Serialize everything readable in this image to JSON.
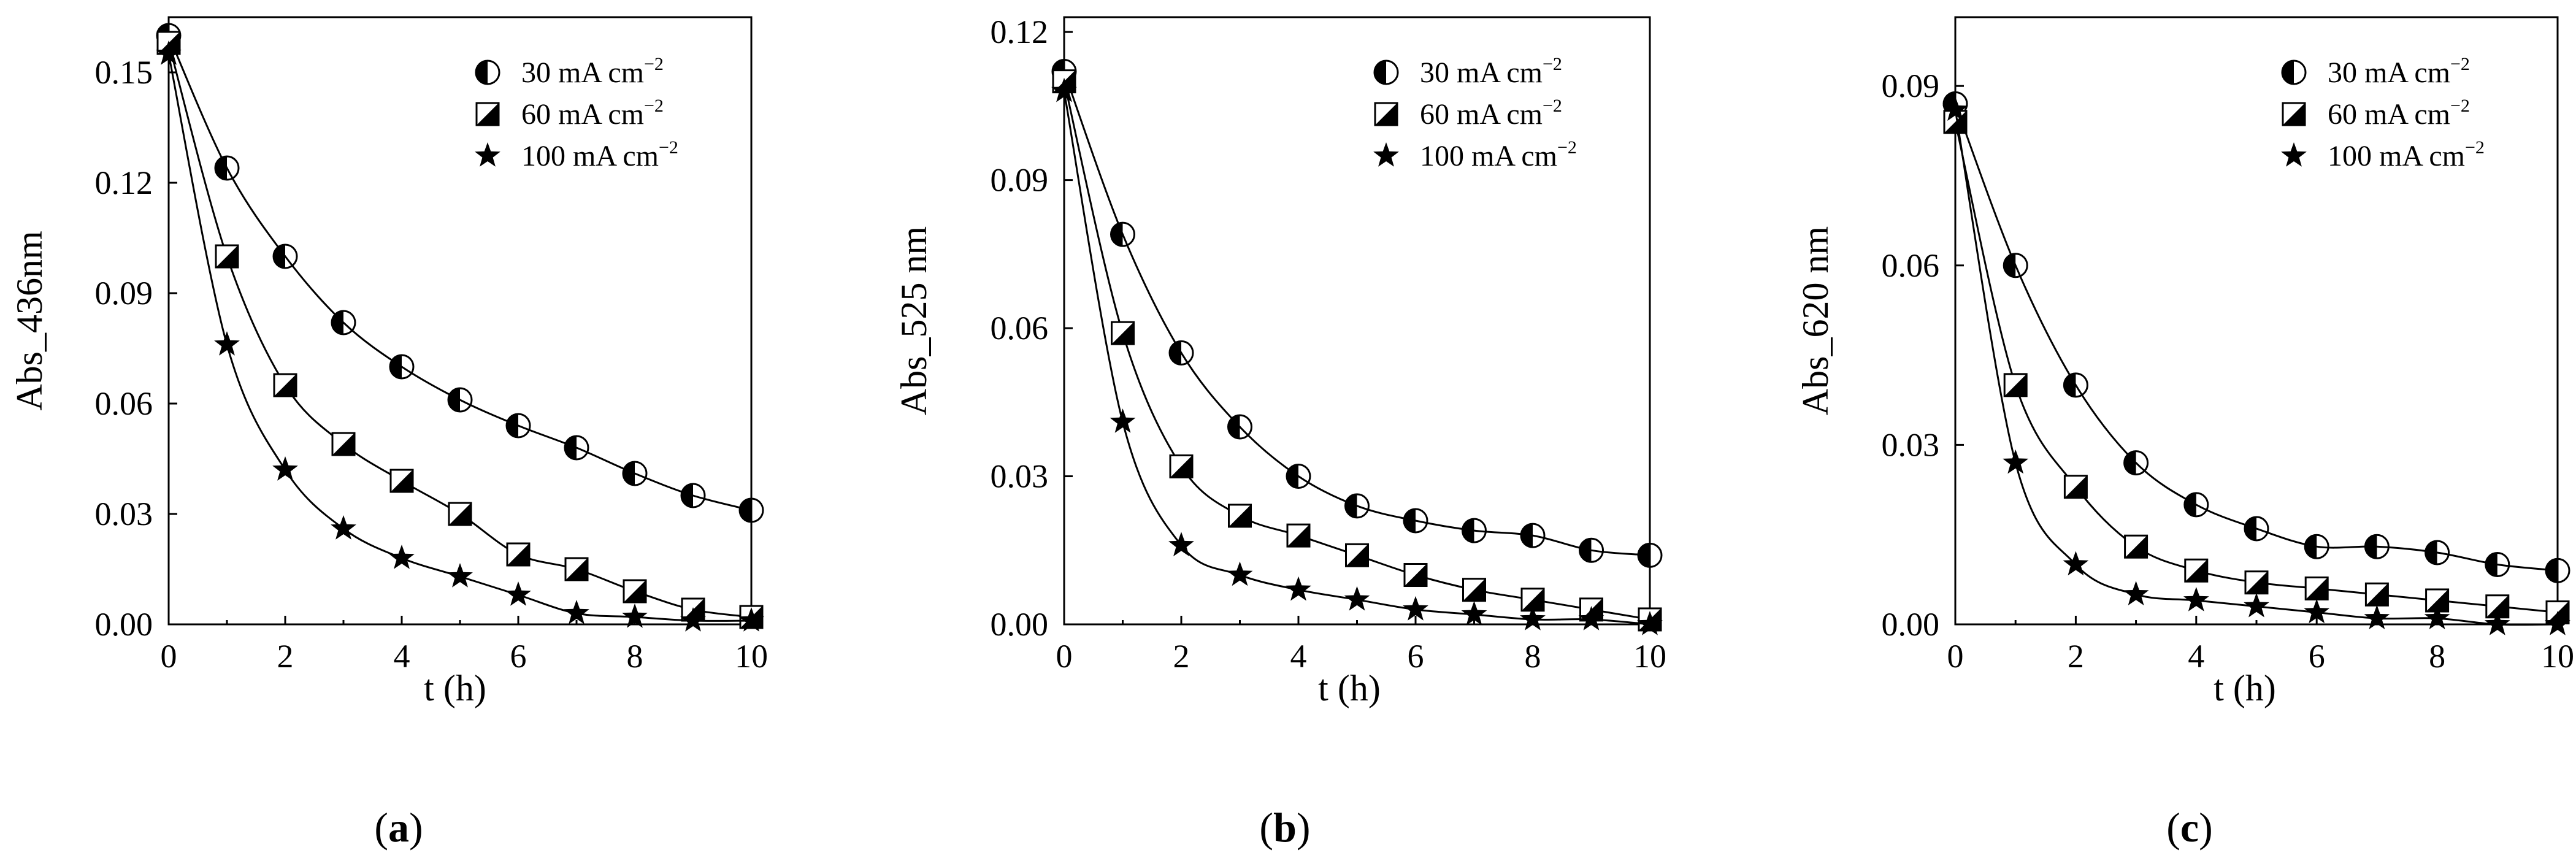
{
  "chart_data": [
    {
      "type": "scatter",
      "panel_label": "a",
      "xlabel": "t (h)",
      "ylabel": "Abs_436nm",
      "xlim": [
        0,
        10
      ],
      "ylim": [
        0,
        0.165
      ],
      "xticks": [
        "0",
        "2",
        "4",
        "6",
        "8",
        "10"
      ],
      "yticks": [
        "0.00",
        "0.03",
        "0.06",
        "0.09",
        "0.12",
        "0.15"
      ],
      "legend_position": "top-right",
      "x": [
        0,
        1,
        2,
        3,
        4,
        5,
        6,
        7,
        8,
        9,
        10
      ],
      "series": [
        {
          "name": "30 mA cm",
          "unit_exp": "−2",
          "marker": "circle-half",
          "values": [
            0.16,
            0.124,
            0.1,
            0.082,
            0.07,
            0.061,
            0.054,
            0.048,
            0.041,
            0.035,
            0.031
          ]
        },
        {
          "name": "60 mA cm",
          "unit_exp": "−2",
          "marker": "square-half",
          "values": [
            0.158,
            0.1,
            0.065,
            0.049,
            0.039,
            0.03,
            0.019,
            0.015,
            0.009,
            0.004,
            0.002
          ]
        },
        {
          "name": "100 mA cm",
          "unit_exp": "−2",
          "marker": "star",
          "values": [
            0.155,
            0.076,
            0.042,
            0.026,
            0.018,
            0.013,
            0.008,
            0.003,
            0.002,
            0.001,
            0.001
          ]
        }
      ]
    },
    {
      "type": "scatter",
      "panel_label": "b",
      "xlabel": "t (h)",
      "ylabel": "Abs_525 nm",
      "xlim": [
        0,
        10
      ],
      "ylim": [
        0,
        0.123
      ],
      "xticks": [
        "0",
        "2",
        "4",
        "6",
        "8",
        "10"
      ],
      "yticks": [
        "0.00",
        "0.03",
        "0.06",
        "0.09",
        "0.12"
      ],
      "legend_position": "top-right",
      "x": [
        0,
        1,
        2,
        3,
        4,
        5,
        6,
        7,
        8,
        9,
        10
      ],
      "series": [
        {
          "name": "30 mA cm",
          "unit_exp": "−2",
          "marker": "circle-half",
          "values": [
            0.112,
            0.079,
            0.055,
            0.04,
            0.03,
            0.024,
            0.021,
            0.019,
            0.018,
            0.015,
            0.014
          ]
        },
        {
          "name": "60 mA cm",
          "unit_exp": "−2",
          "marker": "square-half",
          "values": [
            0.11,
            0.059,
            0.032,
            0.022,
            0.018,
            0.014,
            0.01,
            0.007,
            0.005,
            0.003,
            0.001
          ]
        },
        {
          "name": "100 mA cm",
          "unit_exp": "−2",
          "marker": "star",
          "values": [
            0.108,
            0.041,
            0.016,
            0.01,
            0.007,
            0.005,
            0.003,
            0.002,
            0.001,
            0.001,
            0.0
          ]
        }
      ]
    },
    {
      "type": "scatter",
      "panel_label": "c",
      "xlabel": "t (h)",
      "ylabel": "Abs_620 nm",
      "xlim": [
        0,
        10
      ],
      "ylim": [
        0,
        0.1015
      ],
      "xticks": [
        "0",
        "2",
        "4",
        "6",
        "8",
        "10"
      ],
      "yticks": [
        "0.00",
        "0.03",
        "0.06",
        "0.09"
      ],
      "legend_position": "top-right",
      "x": [
        0,
        1,
        2,
        3,
        4,
        5,
        6,
        7,
        8,
        9,
        10
      ],
      "series": [
        {
          "name": "30 mA cm",
          "unit_exp": "−2",
          "marker": "circle-half",
          "values": [
            0.087,
            0.06,
            0.04,
            0.027,
            0.02,
            0.016,
            0.013,
            0.013,
            0.012,
            0.01,
            0.009
          ]
        },
        {
          "name": "60 mA cm",
          "unit_exp": "−2",
          "marker": "square-half",
          "values": [
            0.084,
            0.04,
            0.023,
            0.013,
            0.009,
            0.007,
            0.006,
            0.005,
            0.004,
            0.003,
            0.002
          ]
        },
        {
          "name": "100 mA cm",
          "unit_exp": "−2",
          "marker": "star",
          "values": [
            0.086,
            0.027,
            0.01,
            0.005,
            0.004,
            0.003,
            0.002,
            0.001,
            0.001,
            0.0,
            0.0
          ]
        }
      ]
    }
  ]
}
